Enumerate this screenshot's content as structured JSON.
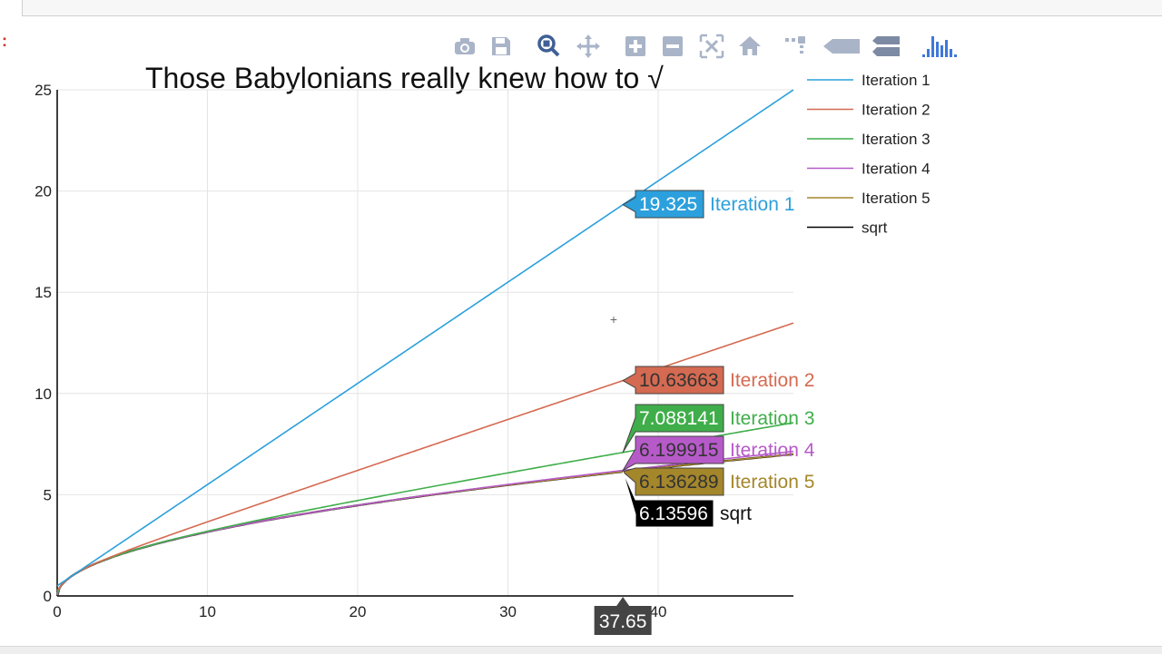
{
  "modebar": {
    "buttons": [
      {
        "name": "camera-icon",
        "title": "Download plot as a png"
      },
      {
        "name": "save-icon",
        "title": "Save"
      },
      {
        "name": "zoom-icon",
        "title": "Zoom"
      },
      {
        "name": "pan-icon",
        "title": "Pan"
      },
      {
        "name": "zoom-in-icon",
        "title": "Zoom in"
      },
      {
        "name": "zoom-out-icon",
        "title": "Zoom out"
      },
      {
        "name": "autoscale-icon",
        "title": "Autoscale"
      },
      {
        "name": "home-icon",
        "title": "Reset axes"
      },
      {
        "name": "spike-lines-icon",
        "title": "Toggle Spike Lines"
      },
      {
        "name": "hover-closest-icon",
        "title": "Show closest data on hover"
      },
      {
        "name": "hover-compare-icon",
        "title": "Compare data on hover"
      },
      {
        "name": "plotly-logo-icon",
        "title": "Produced with Plotly"
      }
    ],
    "color": "#a9b4c8",
    "active_color": "#3f5f96",
    "logo_color": "#3f78d8"
  },
  "chart_data": {
    "type": "line",
    "title": "Those Babylonians really knew how to √",
    "xlabel": "",
    "ylabel": "",
    "xlim": [
      0,
      49
    ],
    "ylim": [
      0,
      25
    ],
    "xticks": [
      0,
      10,
      20,
      30,
      40
    ],
    "yticks": [
      0,
      5,
      10,
      15,
      20,
      25
    ],
    "grid": true,
    "legend_position": "right",
    "hover_x": 37.65,
    "hover_x_label": "37.65",
    "series": [
      {
        "name": "Iteration 1",
        "color": "#2ca0dc",
        "iteration": 1,
        "hover_value": 19.325,
        "hover_label": "19.325",
        "hover_text_color": "#ffffff"
      },
      {
        "name": "Iteration 2",
        "color": "#d46a51",
        "iteration": 2,
        "hover_value": 10.63663,
        "hover_label": "10.63663",
        "hover_text_color": "#333333"
      },
      {
        "name": "Iteration 3",
        "color": "#3fae4a",
        "iteration": 3,
        "hover_value": 7.088141,
        "hover_label": "7.088141",
        "hover_text_color": "#ffffff"
      },
      {
        "name": "Iteration 4",
        "color": "#b75ac9",
        "iteration": 4,
        "hover_value": 6.199915,
        "hover_label": "6.199915",
        "hover_text_color": "#333333"
      },
      {
        "name": "Iteration 5",
        "color": "#a4862b",
        "iteration": 5,
        "hover_value": 6.136289,
        "hover_label": "6.136289",
        "hover_text_color": "#333333"
      },
      {
        "name": "sqrt",
        "color": "#000000",
        "iteration": 0,
        "hover_value": 6.13596,
        "hover_label": "6.13596",
        "hover_text_color": "#ffffff"
      }
    ]
  }
}
